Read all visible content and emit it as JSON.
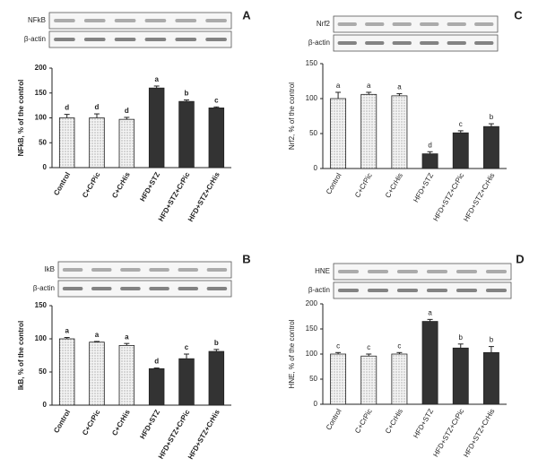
{
  "chart_data": [
    {
      "type": "bar",
      "panel": "A",
      "blot_labels": [
        "NFkB",
        "β-actin"
      ],
      "ylabel": "NFkB, % of  the control",
      "categories": [
        "Control",
        "C+CrPic",
        "C+CrHis",
        "HFD+STZ",
        "HFD+STZ+CrPic",
        "HFD+STZ+CrHis"
      ],
      "values": [
        100,
        100,
        97,
        160,
        133,
        120
      ],
      "errors": [
        7,
        8,
        4,
        4,
        3,
        2
      ],
      "annotations": [
        "d",
        "d",
        "d",
        "a",
        "b",
        "c"
      ],
      "colors": [
        "#e8e8e8",
        "#e8e8e8",
        "#e8e8e8",
        "#333333",
        "#333333",
        "#333333"
      ],
      "ylim": [
        0,
        200
      ],
      "yticks": [
        0,
        50,
        100,
        150,
        200
      ]
    },
    {
      "type": "bar",
      "panel": "C",
      "blot_labels": [
        "Nrf2",
        "β-actin"
      ],
      "ylabel": "Nrf2, % of the control",
      "categories": [
        "Control",
        "C+CrPic",
        "C+CrHis",
        "HFD+STZ",
        "HFD+STZ+CrPic",
        "HFD+STZ+CrHis"
      ],
      "values": [
        100,
        106,
        104,
        21,
        51,
        60
      ],
      "errors": [
        9,
        3,
        3,
        3,
        3,
        4
      ],
      "annotations": [
        "a",
        "a",
        "a",
        "d",
        "c",
        "b"
      ],
      "colors": [
        "#e8e8e8",
        "#e8e8e8",
        "#e8e8e8",
        "#333333",
        "#333333",
        "#333333"
      ],
      "ylim": [
        0,
        150
      ],
      "yticks": [
        0,
        50,
        100,
        150
      ]
    },
    {
      "type": "bar",
      "panel": "B",
      "blot_labels": [
        "IkB",
        "β-actin"
      ],
      "ylabel": "IkB, % of  the control",
      "categories": [
        "Control",
        "C+CrPic",
        "C+CrHis",
        "HFD+STZ",
        "HFD+STZ+CrPic",
        "HFD+STZ+CrHis"
      ],
      "values": [
        100,
        95,
        90,
        55,
        70,
        81
      ],
      "errors": [
        2,
        1,
        3,
        1,
        7,
        3
      ],
      "annotations": [
        "a",
        "a",
        "a",
        "d",
        "c",
        "b"
      ],
      "colors": [
        "#e8e8e8",
        "#e8e8e8",
        "#e8e8e8",
        "#333333",
        "#333333",
        "#333333"
      ],
      "ylim": [
        0,
        150
      ],
      "yticks": [
        0,
        50,
        100,
        150
      ]
    },
    {
      "type": "bar",
      "panel": "D",
      "blot_labels": [
        "HNE",
        "β-actin"
      ],
      "ylabel": "HNE, % of the control",
      "categories": [
        "Control",
        "C+CrPic",
        "C+CrHis",
        "HFD+STZ",
        "HFD+STZ+CrPic",
        "HFD+STZ+CrHis"
      ],
      "values": [
        100,
        96,
        100,
        165,
        112,
        103
      ],
      "errors": [
        3,
        4,
        3,
        4,
        8,
        12
      ],
      "annotations": [
        "c",
        "c",
        "c",
        "a",
        "b",
        "b"
      ],
      "colors": [
        "#e8e8e8",
        "#e8e8e8",
        "#e8e8e8",
        "#333333",
        "#333333",
        "#333333"
      ],
      "ylim": [
        0,
        200
      ],
      "yticks": [
        0,
        50,
        100,
        150,
        200
      ]
    }
  ]
}
